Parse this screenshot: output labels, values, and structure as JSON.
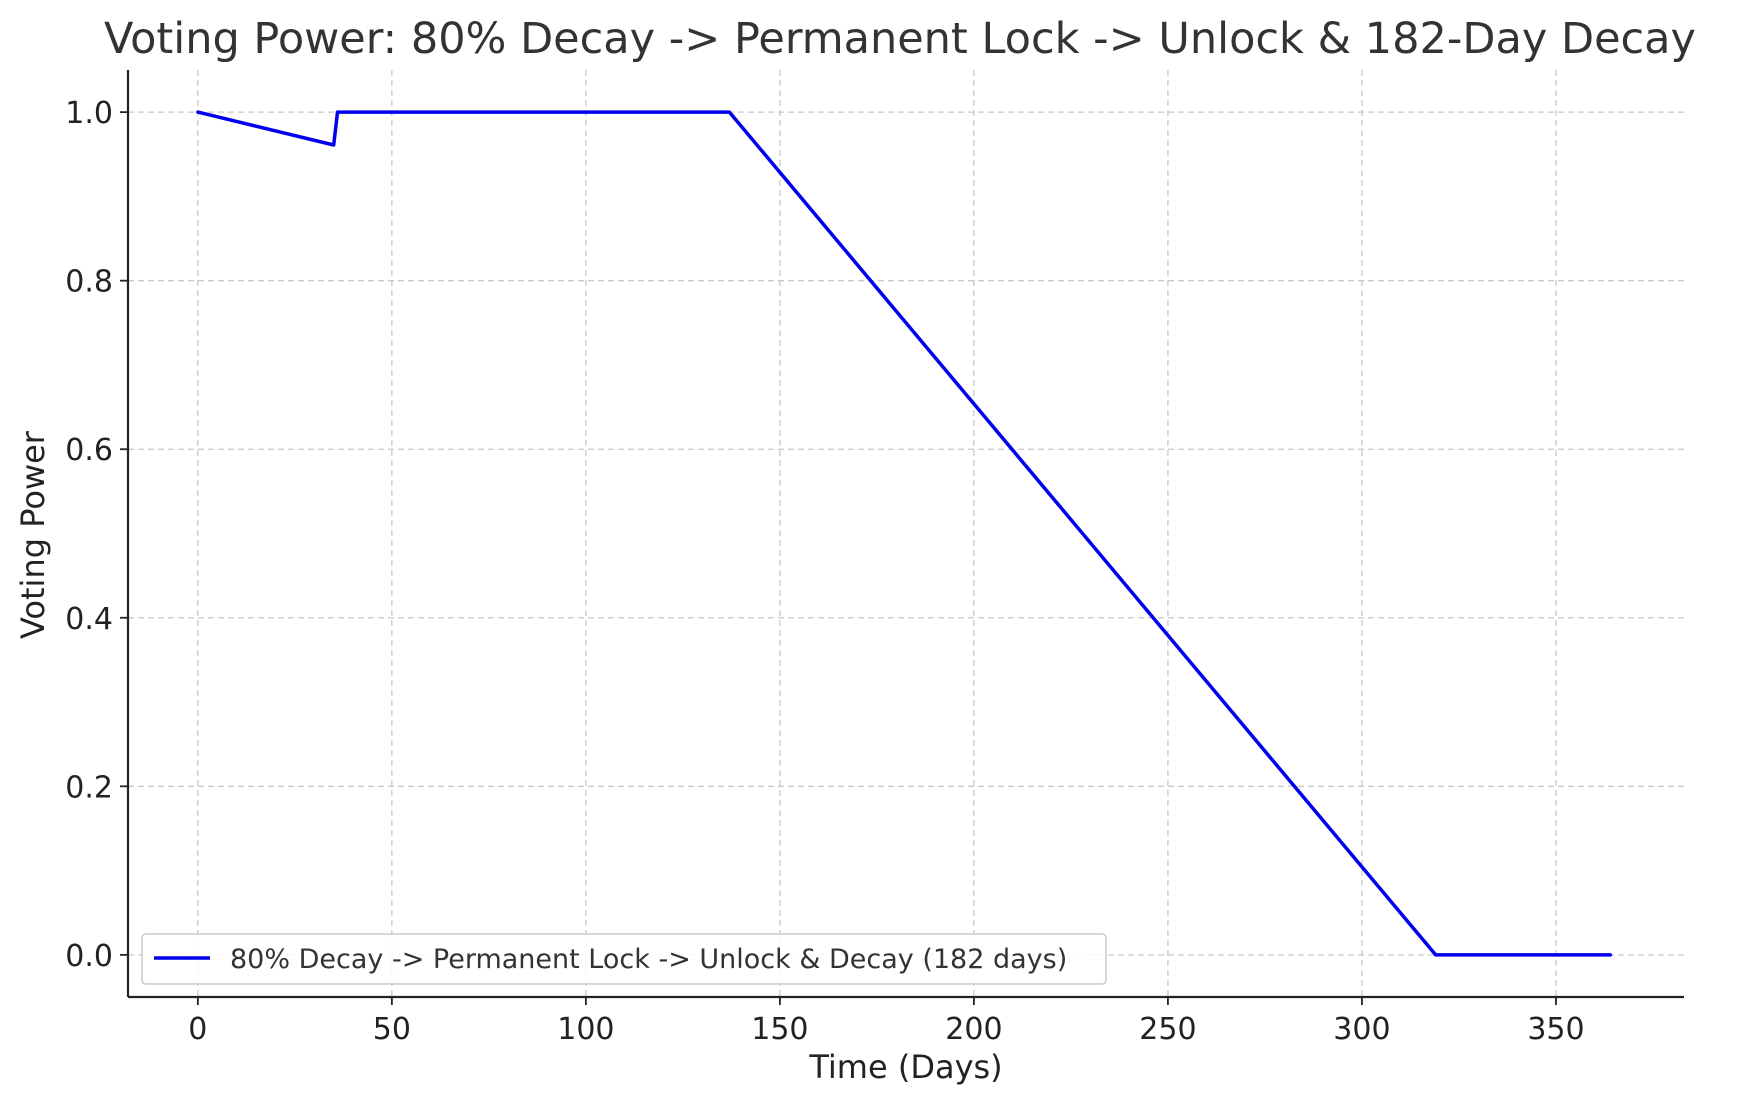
{
  "chart_data": {
    "type": "line",
    "title": "Voting Power: 80% Decay -> Permanent Lock -> Unlock & 182-Day Decay",
    "xlabel": "Time (Days)",
    "ylabel": "Voting Power",
    "xlim": [
      -18,
      383
    ],
    "ylim": [
      -0.05,
      1.05
    ],
    "x_ticks": [
      0,
      50,
      100,
      150,
      200,
      250,
      300,
      350
    ],
    "y_ticks": [
      0.0,
      0.2,
      0.4,
      0.6,
      0.8,
      1.0
    ],
    "x_tick_labels": [
      "0",
      "50",
      "100",
      "150",
      "200",
      "250",
      "300",
      "350"
    ],
    "y_tick_labels": [
      "0.0",
      "0.2",
      "0.4",
      "0.6",
      "0.8",
      "1.0"
    ],
    "grid": true,
    "legend_position": "lower-left",
    "series": [
      {
        "name": "80% Decay -> Permanent Lock -> Unlock & Decay (182 days)",
        "color": "#0000ee",
        "x": [
          0,
          35,
          36,
          137,
          319,
          364
        ],
        "y": [
          1.0,
          0.961,
          1.0,
          1.0,
          0.0,
          0.0
        ]
      }
    ]
  }
}
